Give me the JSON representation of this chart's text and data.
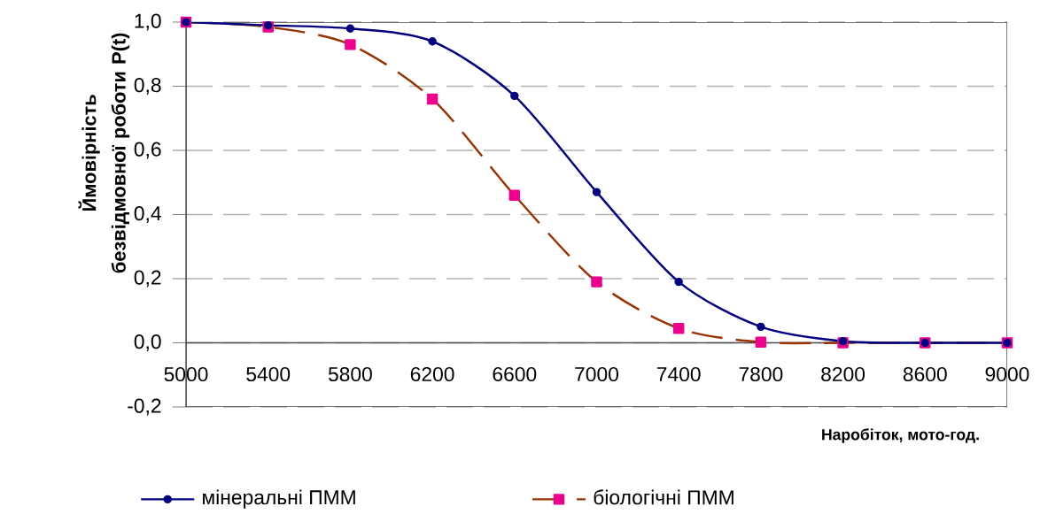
{
  "chart_data": {
    "type": "line",
    "xlabel": "Наробіток, мото-год.",
    "ylabel": "Ймовірність безвідмовної роботи P(t)",
    "x": [
      5000,
      5400,
      5800,
      6200,
      6600,
      7000,
      7400,
      7800,
      8200,
      8600,
      9000
    ],
    "series": [
      {
        "name": "мінеральні ПММ",
        "color": "#000080",
        "marker": "circle",
        "line_style": "solid",
        "values": [
          1.0,
          0.99,
          0.98,
          0.94,
          0.77,
          0.47,
          0.19,
          0.05,
          0.005,
          0.0,
          0.0
        ]
      },
      {
        "name": "біологічні ПММ",
        "color": "#993300",
        "marker": "square",
        "line_style": "dashed",
        "values": [
          1.0,
          0.985,
          0.93,
          0.76,
          0.46,
          0.19,
          0.045,
          0.002,
          0.0,
          0.0,
          0.0
        ]
      }
    ],
    "xlim": [
      5000,
      9000
    ],
    "xticks": [
      5000,
      5400,
      5800,
      6200,
      6600,
      7000,
      7400,
      7800,
      8200,
      8600,
      9000
    ],
    "ylim": [
      -0.2,
      1.0
    ],
    "yticks": [
      {
        "value": -0.2,
        "label": "-0,2"
      },
      {
        "value": 0.0,
        "label": "0,0"
      },
      {
        "value": 0.2,
        "label": "0,2"
      },
      {
        "value": 0.4,
        "label": "0,4"
      },
      {
        "value": 0.6,
        "label": "0,6"
      },
      {
        "value": 0.8,
        "label": "0,8"
      },
      {
        "value": 1.0,
        "label": "1,0"
      }
    ],
    "grid": "y",
    "legend": "bottom"
  }
}
